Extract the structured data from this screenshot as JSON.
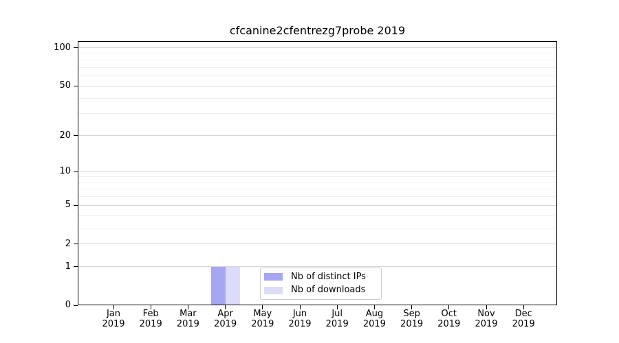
{
  "chart_data": {
    "type": "bar",
    "title": "cfcanine2cfentrezg7probe 2019",
    "categories": [
      "Jan 2019",
      "Feb 2019",
      "Mar 2019",
      "Apr 2019",
      "May 2019",
      "Jun 2019",
      "Jul 2019",
      "Aug 2019",
      "Sep 2019",
      "Oct 2019",
      "Nov 2019",
      "Dec 2019"
    ],
    "series": [
      {
        "name": "Nb of distinct IPs",
        "color": "#a6a6f2",
        "values": [
          0,
          0,
          0,
          1,
          0,
          0,
          0,
          0,
          0,
          0,
          0,
          0
        ]
      },
      {
        "name": "Nb of downloads",
        "color": "#dcdcf9",
        "values": [
          0,
          0,
          0,
          1,
          0,
          0,
          0,
          0,
          0,
          0,
          0,
          0
        ]
      }
    ],
    "xlabel": "",
    "ylabel": "",
    "yscale": "log1p",
    "yticks": [
      0,
      1,
      2,
      5,
      10,
      20,
      50,
      100
    ],
    "minor_gridlines": [
      3,
      4,
      6,
      7,
      8,
      9,
      30,
      40,
      60,
      70,
      80,
      90
    ],
    "ylim": [
      0,
      113
    ],
    "grid": true,
    "legend_position": "inside lower center",
    "background": "#ffffff"
  },
  "styles": {
    "major_grid_color": "#d6d6d6",
    "minor_grid_color": "#f0f0f0",
    "axis_color": "#000000",
    "text_color": "#000000",
    "legend_border_color": "#cccccc"
  }
}
